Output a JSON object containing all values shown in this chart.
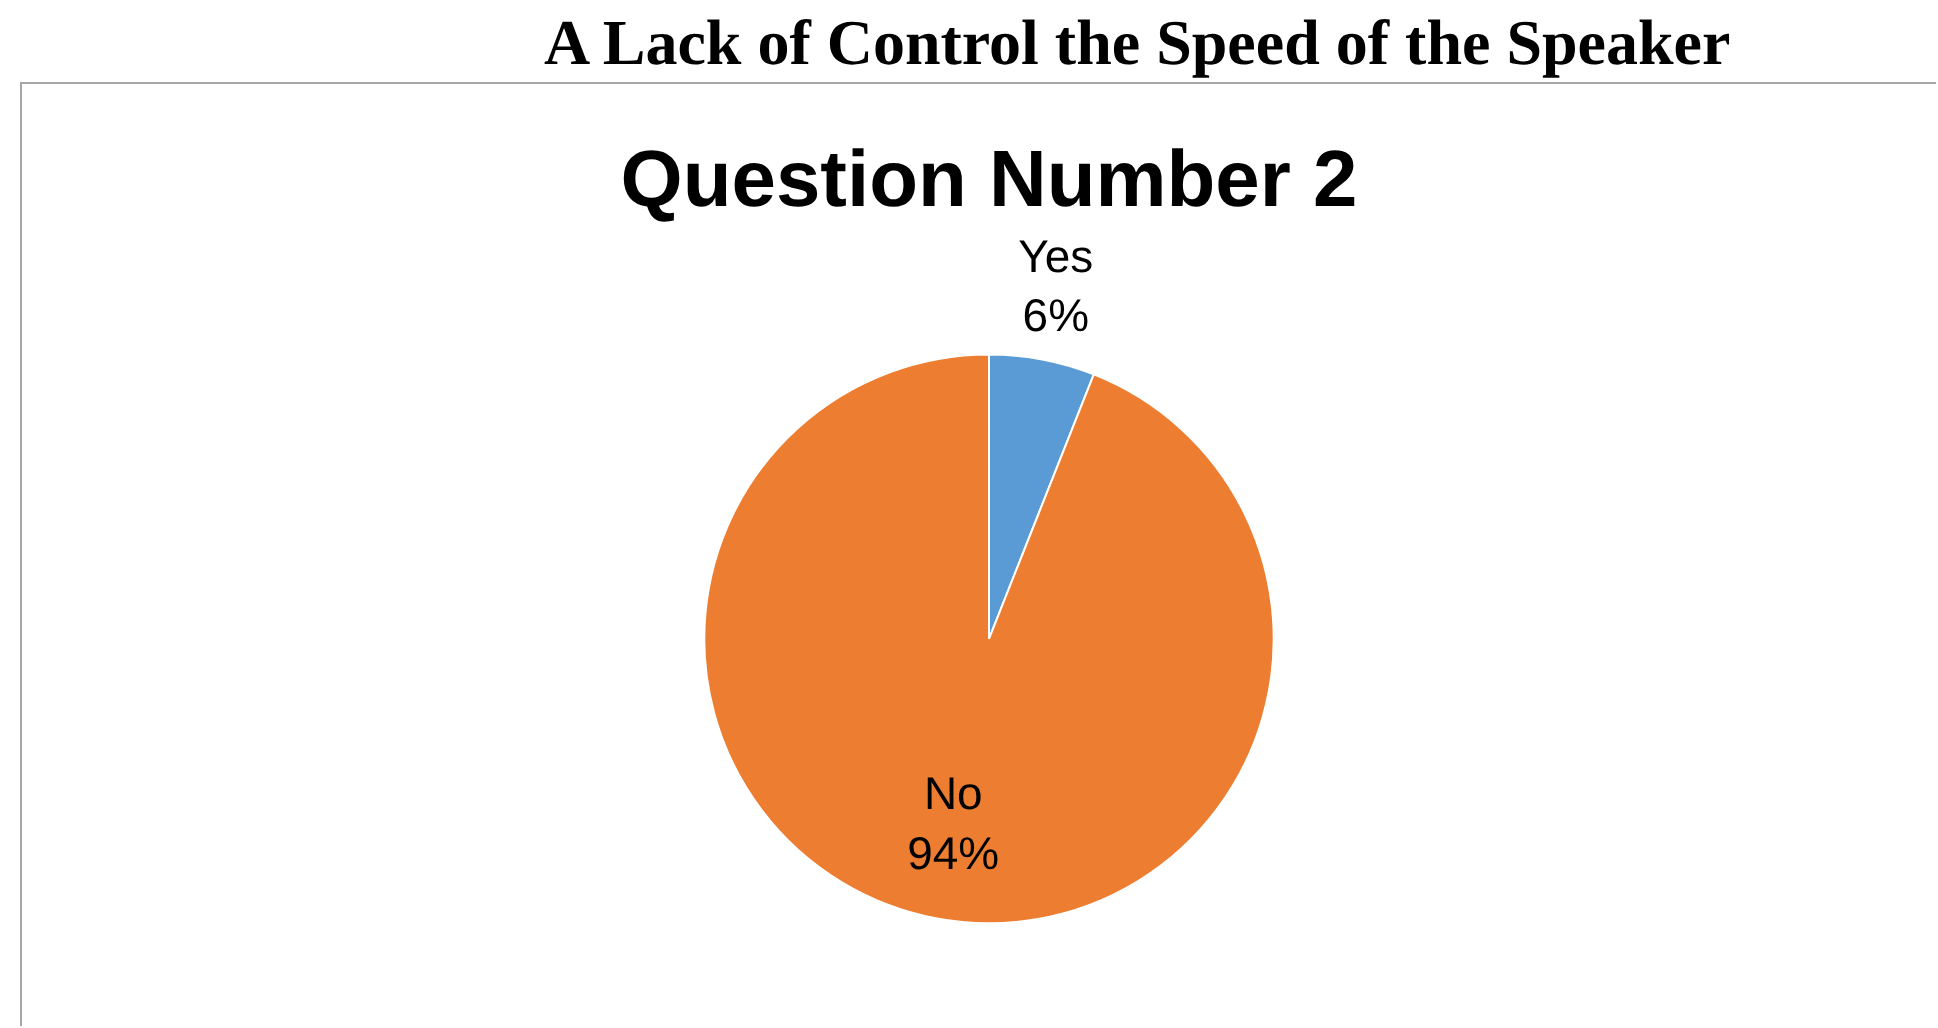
{
  "chart_data": {
    "type": "pie",
    "title": "A Lack of Control the Speed of the Speaker",
    "subtitle": "Question Number 2",
    "categories": [
      "Yes",
      "No"
    ],
    "values": [
      6,
      94
    ],
    "colors": [
      "#5b9bd5",
      "#ed7d31"
    ],
    "value_labels": [
      "6%",
      "94%"
    ],
    "legend": false
  }
}
